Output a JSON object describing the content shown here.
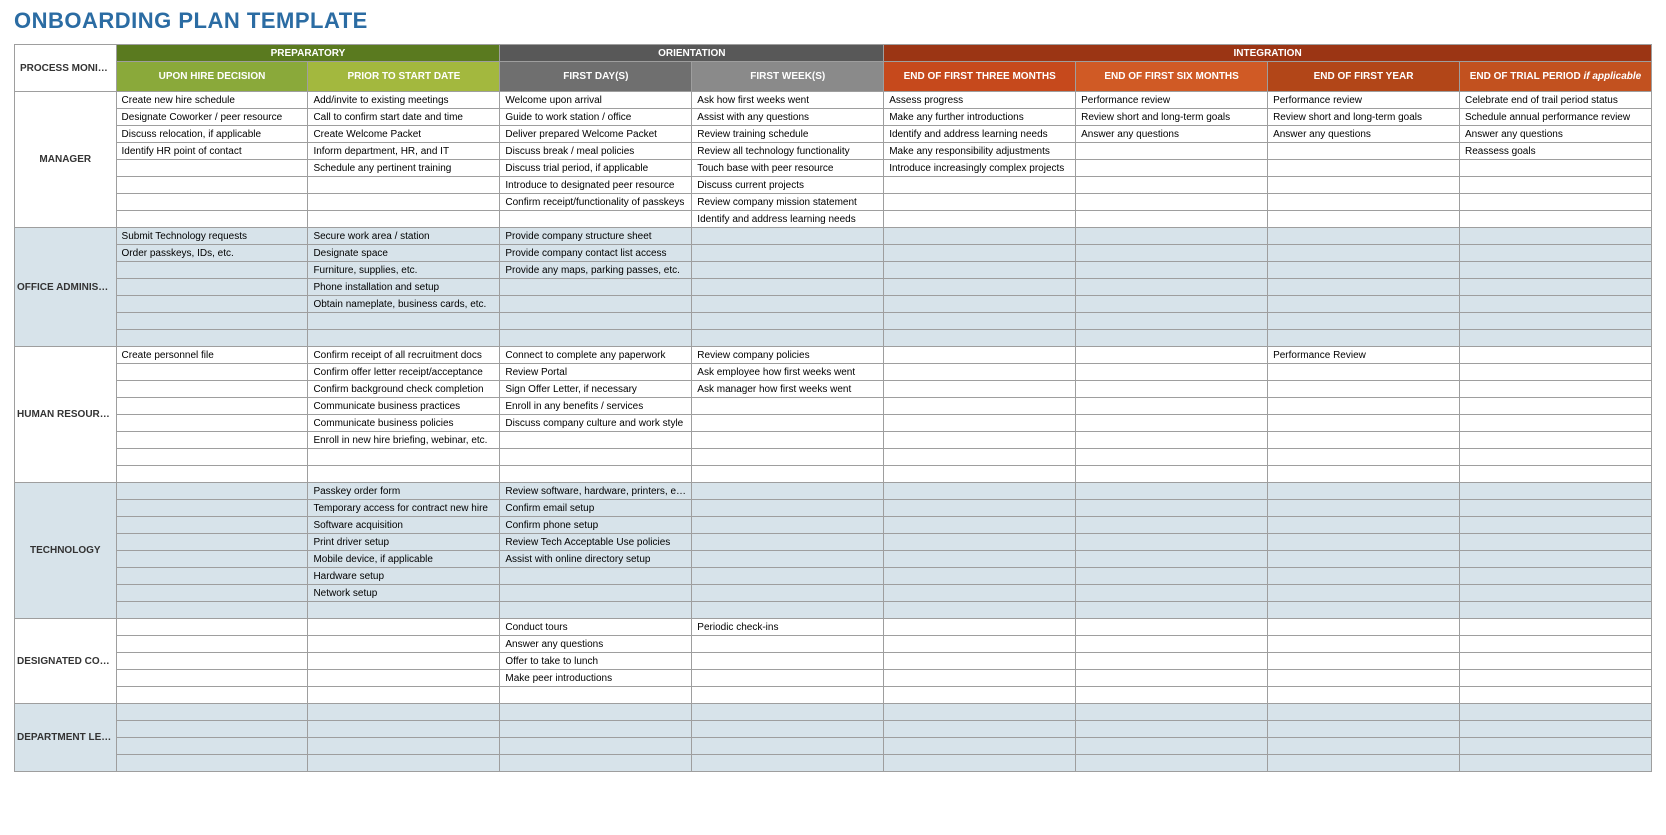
{
  "title": "ONBOARDING PLAN TEMPLATE",
  "colors": {
    "title": "#2b6ca3",
    "tint": "#d7e3ea",
    "border": "#9e9e9e",
    "phases": {
      "prep_group": "#5a7a1f",
      "prep_a": "#8aa93a",
      "prep_b": "#a3b83e",
      "orient_group": "#585858",
      "orient_a": "#6f6f6f",
      "orient_b": "#8a8a8a",
      "integ_group": "#9b3514",
      "integ_a": "#c6491c",
      "integ_b": "#d05a25",
      "integ_c": "#b24618",
      "integ_d": "#c2511f"
    }
  },
  "role_header": "PROCESS MONITOR / MENTOR",
  "phase_groups": [
    {
      "label": "PREPARATORY",
      "color_key": "prep_group",
      "span": 2
    },
    {
      "label": "ORIENTATION",
      "color_key": "orient_group",
      "span": 2
    },
    {
      "label": "INTEGRATION",
      "color_key": "integ_group",
      "span": 4
    }
  ],
  "phase_cols": [
    {
      "label": "UPON HIRE DECISION",
      "color_key": "prep_a"
    },
    {
      "label": "PRIOR TO START DATE",
      "color_key": "prep_b"
    },
    {
      "label": "FIRST DAY(S)",
      "color_key": "orient_a"
    },
    {
      "label": "FIRST WEEK(S)",
      "color_key": "orient_b"
    },
    {
      "label": "END OF FIRST THREE MONTHS",
      "color_key": "integ_a"
    },
    {
      "label": "END OF FIRST SIX MONTHS",
      "color_key": "integ_b"
    },
    {
      "label": "END OF FIRST YEAR",
      "color_key": "integ_c"
    },
    {
      "label": "END OF TRIAL PERIOD",
      "color_key": "integ_d",
      "suffix": " if applicable"
    }
  ],
  "sections": [
    {
      "role": "MANAGER",
      "suffix": "",
      "tint": false,
      "rows": [
        [
          "Create new hire schedule",
          "Add/invite to existing meetings",
          "Welcome upon arrival",
          "Ask how first weeks went",
          "Assess progress",
          "Performance review",
          "Performance review",
          "Celebrate end of trail period status"
        ],
        [
          "Designate Coworker / peer resource",
          "Call to confirm start date and time",
          "Guide to work station / office",
          "Assist with any questions",
          "Make any further introductions",
          "Review short and long-term goals",
          "Review short and long-term goals",
          "Schedule annual performance review"
        ],
        [
          "Discuss relocation, if applicable",
          "Create Welcome Packet",
          "Deliver prepared Welcome Packet",
          "Review training schedule",
          "Identify and address learning needs",
          "Answer any questions",
          "Answer any questions",
          "Answer any questions"
        ],
        [
          "Identify HR point of contact",
          "Inform department, HR, and IT",
          "Discuss break / meal policies",
          "Review all technology functionality",
          "Make any responsibility adjustments",
          "",
          "",
          "Reassess goals"
        ],
        [
          "",
          "Schedule any pertinent training",
          "Discuss trial period, if applicable",
          "Touch base with peer resource",
          "Introduce increasingly complex projects",
          "",
          "",
          ""
        ],
        [
          "",
          "",
          "Introduce to designated peer resource",
          "Discuss current projects",
          "",
          "",
          "",
          ""
        ],
        [
          "",
          "",
          "Confirm receipt/functionality of passkeys",
          "Review company mission statement",
          "",
          "",
          "",
          ""
        ],
        [
          "",
          "",
          "",
          "Identify and address learning needs",
          "",
          "",
          "",
          ""
        ]
      ]
    },
    {
      "role": "OFFICE ADMINISTRATOR",
      "suffix": "",
      "tint": true,
      "rows": [
        [
          "Submit Technology requests",
          "Secure work area / station",
          "Provide company structure sheet",
          "",
          "",
          "",
          "",
          ""
        ],
        [
          "Order passkeys, IDs, etc.",
          "Designate space",
          "Provide company contact list access",
          "",
          "",
          "",
          "",
          ""
        ],
        [
          "",
          "Furniture, supplies, etc.",
          "Provide any maps, parking passes, etc.",
          "",
          "",
          "",
          "",
          ""
        ],
        [
          "",
          "Phone installation and setup",
          "",
          "",
          "",
          "",
          "",
          ""
        ],
        [
          "",
          "Obtain nameplate, business cards, etc.",
          "",
          "",
          "",
          "",
          "",
          ""
        ],
        [
          "",
          "",
          "",
          "",
          "",
          "",
          "",
          ""
        ],
        [
          "",
          "",
          "",
          "",
          "",
          "",
          "",
          ""
        ]
      ]
    },
    {
      "role": "HUMAN RESOURCES",
      "suffix": "",
      "tint": false,
      "rows": [
        [
          "Create personnel file",
          "Confirm receipt of all recruitment docs",
          "Connect to complete any paperwork",
          "Review company policies",
          "",
          "",
          "Performance Review",
          ""
        ],
        [
          "",
          "Confirm offer letter receipt/acceptance",
          "Review Portal",
          "Ask employee how first weeks went",
          "",
          "",
          "",
          ""
        ],
        [
          "",
          "Confirm background check completion",
          "Sign Offer Letter, if necessary",
          "Ask manager how first weeks went",
          "",
          "",
          "",
          ""
        ],
        [
          "",
          "Communicate business practices",
          "Enroll in any benefits / services",
          "",
          "",
          "",
          "",
          ""
        ],
        [
          "",
          "Communicate business policies",
          "Discuss company culture and work style",
          "",
          "",
          "",
          "",
          ""
        ],
        [
          "",
          "Enroll in new hire briefing, webinar, etc.",
          "",
          "",
          "",
          "",
          "",
          ""
        ],
        [
          "",
          "",
          "",
          "",
          "",
          "",
          "",
          ""
        ],
        [
          "",
          "",
          "",
          "",
          "",
          "",
          "",
          ""
        ]
      ]
    },
    {
      "role": "TECHNOLOGY",
      "suffix": "",
      "tint": true,
      "rows": [
        [
          "",
          "Passkey order form",
          "Review software, hardware, printers, etc.",
          "",
          "",
          "",
          "",
          ""
        ],
        [
          "",
          "Temporary access for contract new hire",
          "Confirm email setup",
          "",
          "",
          "",
          "",
          ""
        ],
        [
          "",
          "Software acquisition",
          "Confirm phone setup",
          "",
          "",
          "",
          "",
          ""
        ],
        [
          "",
          "Print driver setup",
          "Review Tech Acceptable Use policies",
          "",
          "",
          "",
          "",
          ""
        ],
        [
          "",
          "Mobile device, if applicable",
          "Assist with online directory setup",
          "",
          "",
          "",
          "",
          ""
        ],
        [
          "",
          "Hardware setup",
          "",
          "",
          "",
          "",
          "",
          ""
        ],
        [
          "",
          "Network setup",
          "",
          "",
          "",
          "",
          "",
          ""
        ],
        [
          "",
          "",
          "",
          "",
          "",
          "",
          "",
          ""
        ]
      ]
    },
    {
      "role": "DESIGNATED COWORKER / PEER RESOURCE",
      "suffix": "",
      "tint": false,
      "rows": [
        [
          "",
          "",
          "Conduct tours",
          "Periodic check-ins",
          "",
          "",
          "",
          ""
        ],
        [
          "",
          "",
          "Answer any questions",
          "",
          "",
          "",
          "",
          ""
        ],
        [
          "",
          "",
          "Offer to take to lunch",
          "",
          "",
          "",
          "",
          ""
        ],
        [
          "",
          "",
          "Make peer introductions",
          "",
          "",
          "",
          "",
          ""
        ],
        [
          "",
          "",
          "",
          "",
          "",
          "",
          "",
          ""
        ]
      ]
    },
    {
      "role": "DEPARTMENT LEAD",
      "suffix": "if applicable",
      "tint": true,
      "rows": [
        [
          "",
          "",
          "",
          "",
          "",
          "",
          "",
          ""
        ],
        [
          "",
          "",
          "",
          "",
          "",
          "",
          "",
          ""
        ],
        [
          "",
          "",
          "",
          "",
          "",
          "",
          "",
          ""
        ],
        [
          "",
          "",
          "",
          "",
          "",
          "",
          "",
          ""
        ]
      ]
    }
  ]
}
